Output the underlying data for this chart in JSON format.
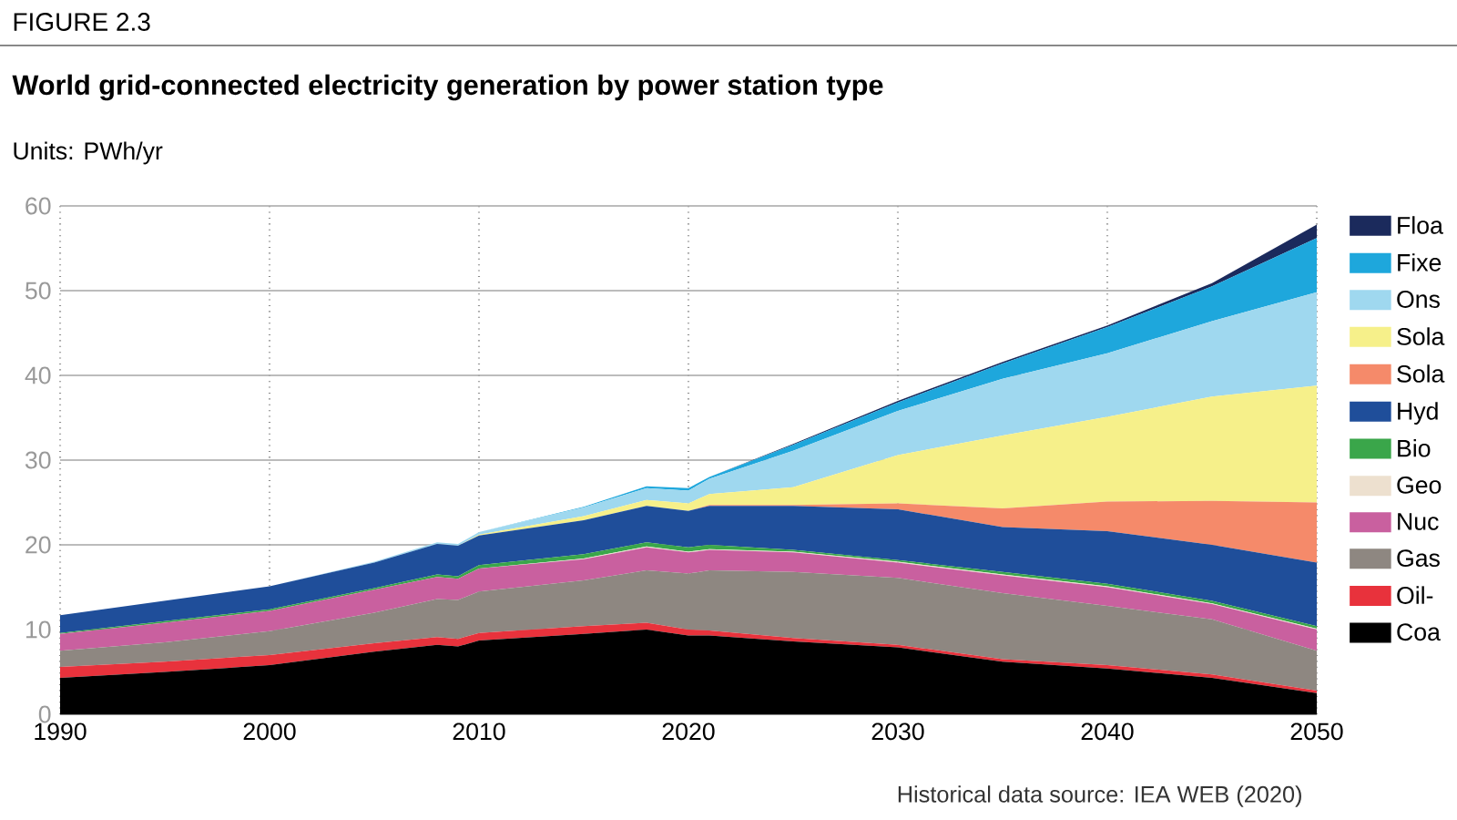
{
  "chart_data": {
    "type": "area",
    "stacked": true,
    "title": "World grid-connected electricity generation by power station type",
    "ylabel": "Units: PWh/yr",
    "annotations": [
      "FIGURE 2.3",
      "Historical data source: IEA WEB (2020)"
    ],
    "x": [
      1990,
      1995,
      2000,
      2005,
      2008,
      2009,
      2010,
      2015,
      2018,
      2020,
      2021,
      2025,
      2030,
      2035,
      2040,
      2045,
      2050
    ],
    "xlim": [
      1990,
      2050
    ],
    "xticks": [
      1990,
      2000,
      2010,
      2020,
      2030,
      2040,
      2050
    ],
    "ylim": [
      0,
      60
    ],
    "yticks": [
      0,
      10,
      20,
      30,
      40,
      50,
      60
    ],
    "grid": true,
    "legend": "right",
    "series": [
      {
        "name": "Coa",
        "color": "#000000",
        "values": [
          4.3,
          5.0,
          5.8,
          7.4,
          8.2,
          8.0,
          8.7,
          9.5,
          10.0,
          9.3,
          9.3,
          8.6,
          7.9,
          6.2,
          5.4,
          4.3,
          2.5
        ]
      },
      {
        "name": "Oil-",
        "color": "#e8323c",
        "values": [
          1.3,
          1.2,
          1.2,
          1.0,
          0.9,
          0.9,
          0.9,
          0.9,
          0.8,
          0.7,
          0.6,
          0.4,
          0.3,
          0.3,
          0.4,
          0.4,
          0.3
        ]
      },
      {
        "name": "Gas",
        "color": "#8e8781",
        "values": [
          1.9,
          2.3,
          2.8,
          3.6,
          4.5,
          4.6,
          4.9,
          5.4,
          6.2,
          6.6,
          7.1,
          7.8,
          7.9,
          7.8,
          7.0,
          6.5,
          4.7
        ]
      },
      {
        "name": "Nuc",
        "color": "#c9609f",
        "values": [
          2.0,
          2.3,
          2.4,
          2.7,
          2.6,
          2.5,
          2.7,
          2.5,
          2.7,
          2.5,
          2.4,
          2.3,
          1.8,
          2.1,
          2.2,
          1.8,
          2.5
        ]
      },
      {
        "name": "Geo",
        "color": "#ede0cf",
        "values": [
          0,
          0,
          0,
          0,
          0,
          0,
          0,
          0.1,
          0.1,
          0.1,
          0.1,
          0.1,
          0.1,
          0.1,
          0.1,
          0.1,
          0.1
        ]
      },
      {
        "name": "Bio",
        "color": "#3aa64a",
        "values": [
          0.1,
          0.2,
          0.2,
          0.2,
          0.3,
          0.3,
          0.4,
          0.5,
          0.5,
          0.5,
          0.5,
          0.2,
          0.2,
          0.3,
          0.3,
          0.3,
          0.3
        ]
      },
      {
        "name": "Hyd",
        "color": "#1f4e9a",
        "values": [
          2.1,
          2.4,
          2.7,
          3.0,
          3.6,
          3.6,
          3.5,
          4.0,
          4.3,
          4.3,
          4.6,
          5.2,
          6.0,
          5.3,
          6.2,
          6.6,
          7.5
        ]
      },
      {
        "name": "Sola",
        "color": "#f58a6a",
        "values": [
          0,
          0,
          0,
          0,
          0,
          0,
          0,
          0,
          0,
          0,
          0.1,
          0.1,
          0.7,
          2.2,
          3.5,
          5.2,
          7.1
        ]
      },
      {
        "name": "Sola",
        "color": "#f6f08a",
        "values": [
          0,
          0,
          0,
          0,
          0,
          0,
          0.1,
          0.5,
          0.7,
          0.9,
          1.3,
          2.1,
          5.7,
          8.6,
          10.0,
          12.3,
          13.8
        ]
      },
      {
        "name": "Ons",
        "color": "#9fd8ef",
        "values": [
          0,
          0,
          0,
          0.1,
          0.2,
          0.2,
          0.3,
          1.0,
          1.4,
          1.5,
          1.8,
          4.3,
          5.2,
          6.7,
          7.5,
          8.9,
          11.0
        ]
      },
      {
        "name": "Fixe",
        "color": "#1ea7dc",
        "values": [
          0,
          0,
          0,
          0,
          0,
          0,
          0,
          0.1,
          0.2,
          0.3,
          0.2,
          0.7,
          1.0,
          1.8,
          3.1,
          4.1,
          6.4
        ]
      },
      {
        "name": "Floa",
        "color": "#1b2a5c",
        "values": [
          0,
          0,
          0,
          0,
          0,
          0,
          0,
          0,
          0,
          0,
          0,
          0.1,
          0.2,
          0.2,
          0.2,
          0.4,
          1.6
        ]
      }
    ]
  }
}
